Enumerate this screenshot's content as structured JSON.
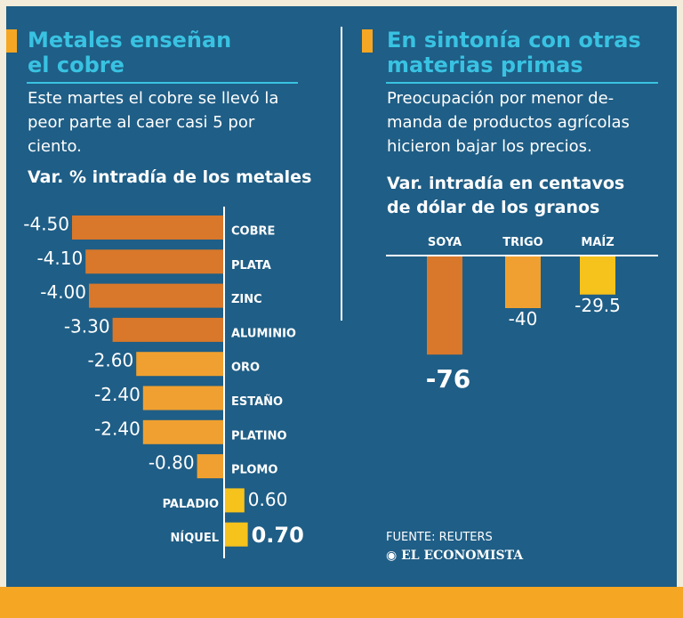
{
  "left": {
    "title_line1": "Metales enseñan",
    "title_line2": "el cobre",
    "desc_line1": "Este martes el cobre se llevó la",
    "desc_line2": "peor parte al caer casi 5 por",
    "desc_line3": "ciento.",
    "subtitle": "Var. % intradía de los metales"
  },
  "right": {
    "title_line1": "En sintonía con otras",
    "title_line2": "materias primas",
    "desc_line1": "Preocupación por menor de-",
    "desc_line2": "manda de productos agrícolas",
    "desc_line3": "hicieron bajar los precios.",
    "subtitle_line1": "Var. intradía en centavos",
    "subtitle_line2": "de dólar de los granos"
  },
  "source": "FUENTE: REUTERS",
  "brand": "EL ECONOMISTA",
  "colors": {
    "panel": "#1f5e86",
    "accent": "#f5a623",
    "title": "#39c2e2",
    "dark_bar": "#d9782a",
    "mid_bar": "#f0a030",
    "light_bar": "#f6c21c"
  },
  "chart_data": [
    {
      "type": "bar",
      "orientation": "horizontal",
      "title": "Var. % intradía de los metales",
      "categories": [
        "COBRE",
        "PLATA",
        "ZINC",
        "ALUMINIO",
        "ORO",
        "ESTAÑO",
        "PLATINO",
        "PLOMO",
        "PALADIO",
        "NÍQUEL"
      ],
      "values": [
        -4.5,
        -4.1,
        -4.0,
        -3.3,
        -2.6,
        -2.4,
        -2.4,
        -0.8,
        0.6,
        0.7
      ],
      "labels": [
        "-4.50",
        "-4.10",
        "-4.00",
        "-3.30",
        "-2.60",
        "-2.40",
        "-2.40",
        "-0.80",
        "0.60",
        "0.70"
      ]
    },
    {
      "type": "bar",
      "title": "Var. intradía en centavos de dólar de los granos",
      "categories": [
        "SOYA",
        "TRIGO",
        "MAÍZ"
      ],
      "values": [
        -76,
        -40,
        -29.5
      ],
      "labels": [
        "-76",
        "-40",
        "-29.5"
      ]
    }
  ]
}
